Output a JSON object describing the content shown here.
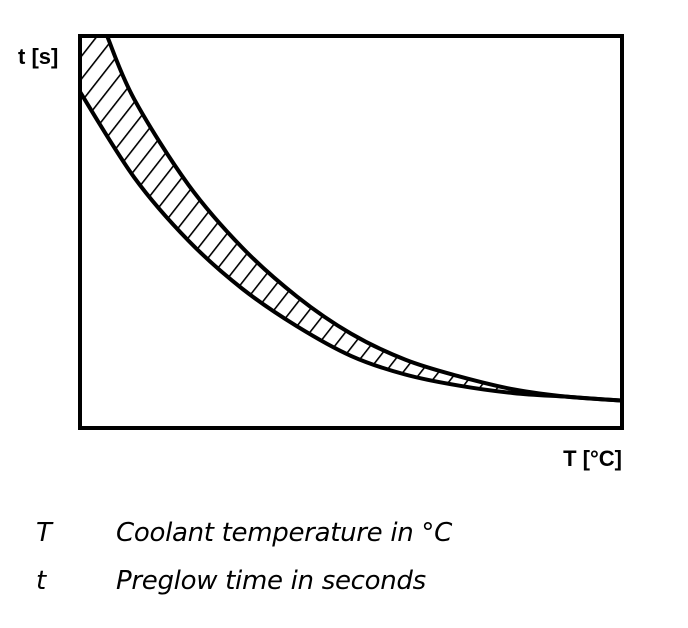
{
  "chart_data": {
    "type": "area",
    "xlabel": "T [°C]",
    "ylabel": "t [s]",
    "series": [
      {
        "role": "upper-bound",
        "x": [
          0.05,
          0.1,
          0.2,
          0.3,
          0.4,
          0.5,
          0.6,
          0.7,
          0.8,
          0.9,
          1.0
        ],
        "y": [
          1.0,
          0.83,
          0.6,
          0.43,
          0.3,
          0.2,
          0.13,
          0.085,
          0.05,
          0.03,
          0.02
        ]
      },
      {
        "role": "lower-bound",
        "x": [
          0.0,
          0.1,
          0.2,
          0.3,
          0.4,
          0.5,
          0.6,
          0.7,
          0.8,
          0.9,
          1.0
        ],
        "y": [
          0.85,
          0.62,
          0.45,
          0.32,
          0.22,
          0.14,
          0.09,
          0.06,
          0.04,
          0.03,
          0.02
        ]
      }
    ],
    "fill": "hatched band between bounds",
    "xlim": [
      0,
      1
    ],
    "ylim": [
      0,
      1
    ],
    "grid": false,
    "ticks": false
  },
  "legend": [
    {
      "symbol": "T",
      "text": "Coolant temperature in °C"
    },
    {
      "symbol": "t",
      "text": "Preglow time in seconds"
    }
  ],
  "colors": {
    "ink": "#000000",
    "background": "#ffffff"
  }
}
